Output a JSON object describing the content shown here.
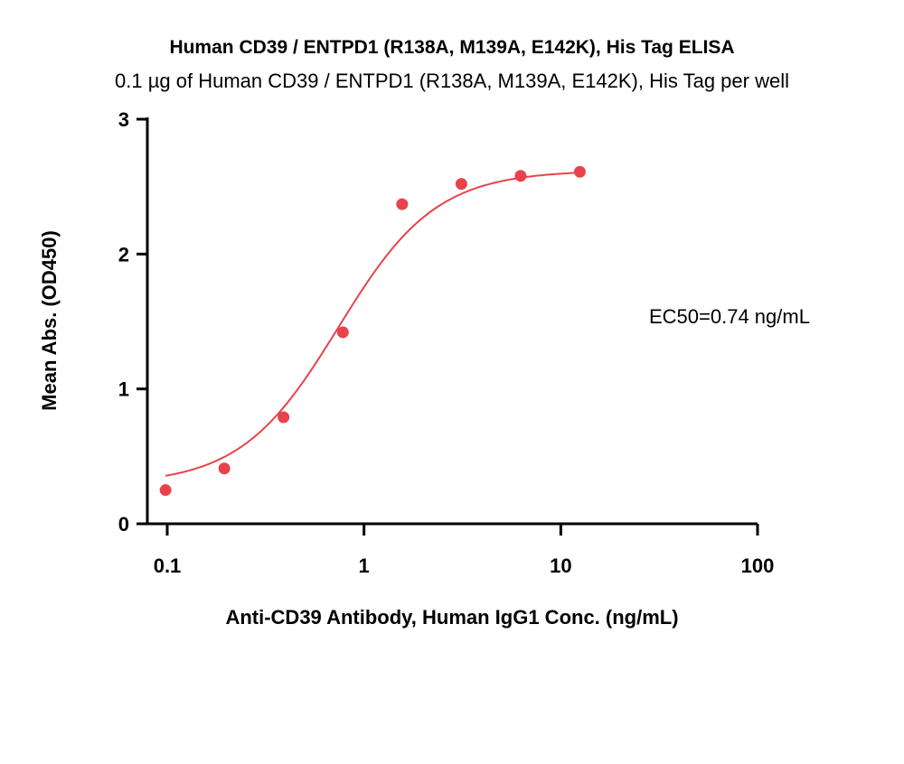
{
  "chart_data": {
    "type": "scatter",
    "title": "Human CD39 / ENTPD1 (R138A, M139A, E142K), His Tag ELISA",
    "subtitle": "0.1 µg of Human CD39 / ENTPD1 (R138A, M139A, E142K), His Tag per well",
    "xlabel": "Anti-CD39 Antibody, Human IgG1 Conc. (ng/mL)",
    "ylabel": "Mean Abs. (OD450)",
    "x_scale": "log",
    "xlim": [
      0.1,
      100
    ],
    "ylim": [
      0,
      3
    ],
    "x_ticks": [
      0.1,
      1,
      10,
      100
    ],
    "x_tick_labels": [
      "0.1",
      "1",
      "10",
      "100"
    ],
    "y_ticks": [
      0,
      1,
      2,
      3
    ],
    "y_tick_labels": [
      "0",
      "1",
      "2",
      "3"
    ],
    "grid": false,
    "series": [
      {
        "x": [
          0.098,
          0.195,
          0.39,
          0.781,
          1.5625,
          3.125,
          6.25,
          12.5
        ],
        "y": [
          0.25,
          0.41,
          0.79,
          1.42,
          2.37,
          2.52,
          2.58,
          2.61
        ],
        "color": "#e8434b"
      }
    ],
    "fit_curve": {
      "model": "4PL",
      "bottom": 0.29,
      "top": 2.62,
      "ec50": 0.74,
      "hill": 1.75,
      "color": "#e8434b"
    },
    "annotation": "EC50=0.74 ng/mL"
  }
}
